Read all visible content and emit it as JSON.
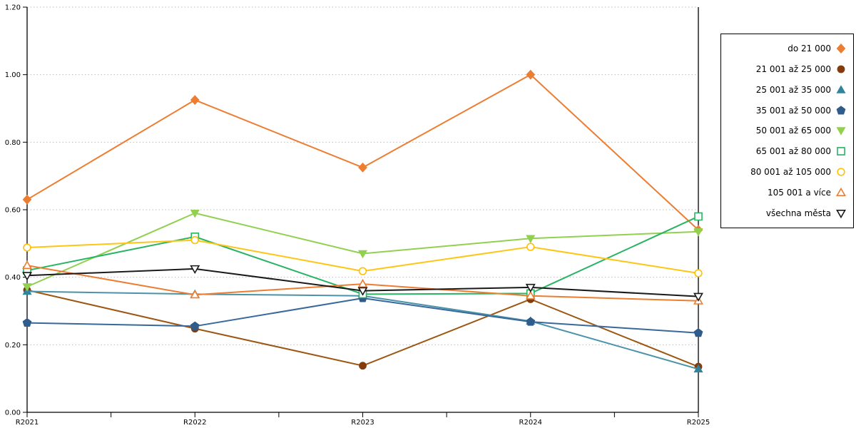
{
  "chart_data": {
    "type": "line",
    "title": "",
    "xlabel": "",
    "ylabel": "",
    "categories": [
      "R2021",
      "R2022",
      "R2023",
      "R2024",
      "R2025"
    ],
    "ylim": [
      0,
      1.2
    ],
    "y_ticks": [
      0,
      0.2,
      0.4,
      0.6,
      0.8,
      1.0,
      1.2
    ],
    "y_tick_labels": [
      "0.00",
      "0.20",
      "0.40",
      "0.60",
      "0.80",
      "1.00",
      "1.20"
    ],
    "grid": true,
    "legend_position": "right",
    "colors": {
      "grid": "#bdbdbd",
      "axis": "#000000"
    },
    "series": [
      {
        "name": "do 21 000",
        "marker": "diamond",
        "hollow": false,
        "color": "#ED7D31",
        "line_color": "#ED7D31",
        "values": [
          0.63,
          0.925,
          0.725,
          1.0,
          0.54
        ]
      },
      {
        "name": "21 001 až 25 000",
        "marker": "circle",
        "hollow": false,
        "color": "#843C0C",
        "line_color": "#9C5712",
        "values": [
          0.362,
          0.248,
          0.138,
          0.335,
          0.135
        ]
      },
      {
        "name": "25 001 až 35 000",
        "marker": "triangle-up",
        "hollow": false,
        "color": "#31849B",
        "line_color": "#4B93A9",
        "values": [
          0.358,
          0.35,
          0.345,
          0.27,
          0.128
        ]
      },
      {
        "name": "35 001 až 50 000",
        "marker": "pentagon",
        "hollow": false,
        "color": "#2F5C8A",
        "line_color": "#39689A",
        "values": [
          0.265,
          0.255,
          0.338,
          0.268,
          0.235
        ]
      },
      {
        "name": "50 001 až 65 000",
        "marker": "triangle-down",
        "hollow": false,
        "color": "#92D050",
        "line_color": "#92D050",
        "values": [
          0.372,
          0.59,
          0.47,
          0.515,
          0.535
        ]
      },
      {
        "name": "65 001 až 80 000",
        "marker": "square",
        "hollow": true,
        "color": "#28B463",
        "line_color": "#28B463",
        "values": [
          0.42,
          0.52,
          0.35,
          0.352,
          0.58
        ]
      },
      {
        "name": "80 001 až 105 000",
        "marker": "circle",
        "hollow": true,
        "color": "#FFC000",
        "line_color": "#FFC513",
        "values": [
          0.488,
          0.51,
          0.418,
          0.49,
          0.412
        ]
      },
      {
        "name": "105 001 a více",
        "marker": "triangle-up",
        "hollow": true,
        "color": "#ED7D31",
        "line_color": "#ED7D31",
        "values": [
          0.435,
          0.348,
          0.38,
          0.345,
          0.33
        ]
      },
      {
        "name": "všechna města",
        "marker": "triangle-down",
        "hollow": true,
        "color": "#1A1A1A",
        "line_color": "#1A1A1A",
        "values": [
          0.405,
          0.425,
          0.36,
          0.37,
          0.343
        ]
      }
    ]
  }
}
